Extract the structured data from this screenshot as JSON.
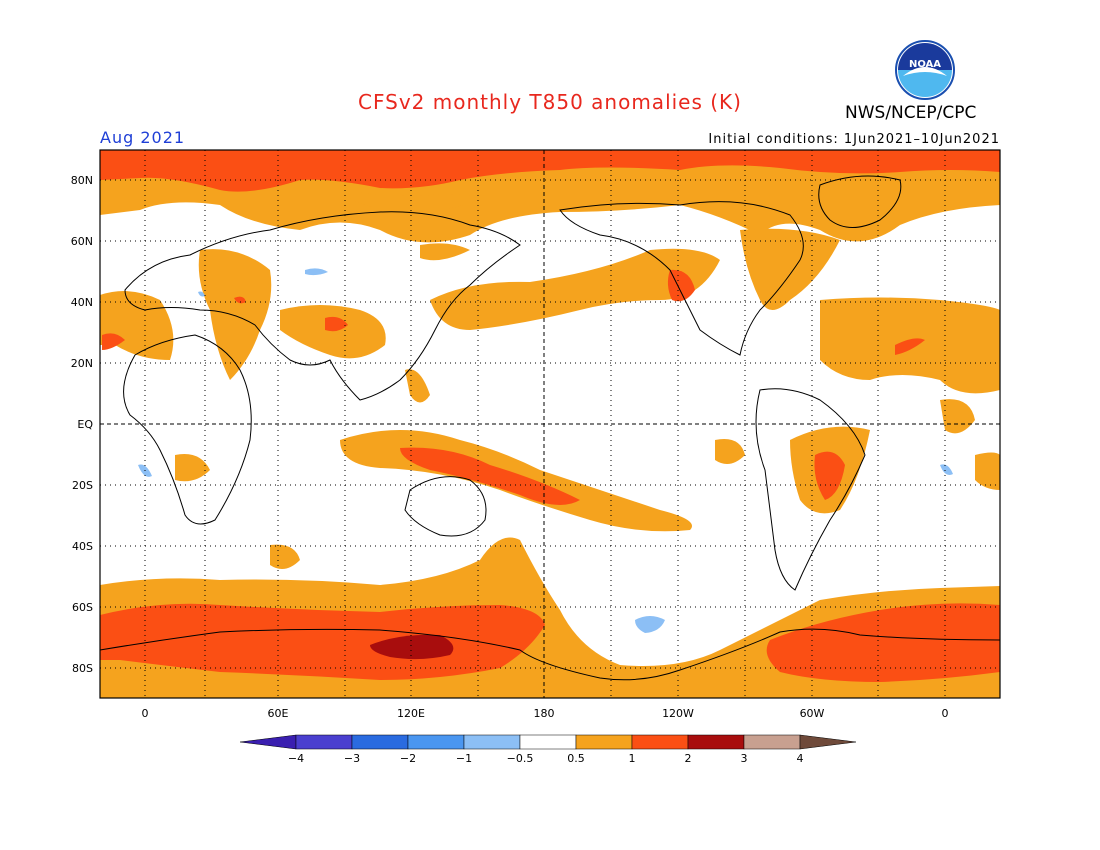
{
  "header": {
    "title": "CFSv2 monthly T850 anomalies (K)",
    "month": "Aug 2021",
    "initial_conditions": "Initial conditions: 1Jun2021–10Jun2021",
    "agency": "NWS/NCEP/CPC",
    "logo_text": "NOAA"
  },
  "colors": {
    "title": "#e8281e",
    "month": "#1f3fd6",
    "ocean_bg": "#ffffff"
  },
  "map": {
    "lat_labels": [
      "80N",
      "60N",
      "40N",
      "20N",
      "EQ",
      "20S",
      "40S",
      "60S",
      "80S"
    ],
    "lon_labels": [
      "0",
      "60E",
      "120E",
      "180",
      "120W",
      "60W",
      "0"
    ]
  },
  "colorbar": {
    "ticks": [
      "−4",
      "−3",
      "−2",
      "−1",
      "−0.5",
      "0.5",
      "1",
      "2",
      "3",
      "4"
    ],
    "colors": [
      "#3a1fb0",
      "#4a3fcf",
      "#2a6be0",
      "#4a96f0",
      "#8cbff5",
      "#ffffff",
      "#f5a31e",
      "#fb4f14",
      "#a80d0d",
      "#c8a090",
      "#6f4a3a"
    ]
  }
}
